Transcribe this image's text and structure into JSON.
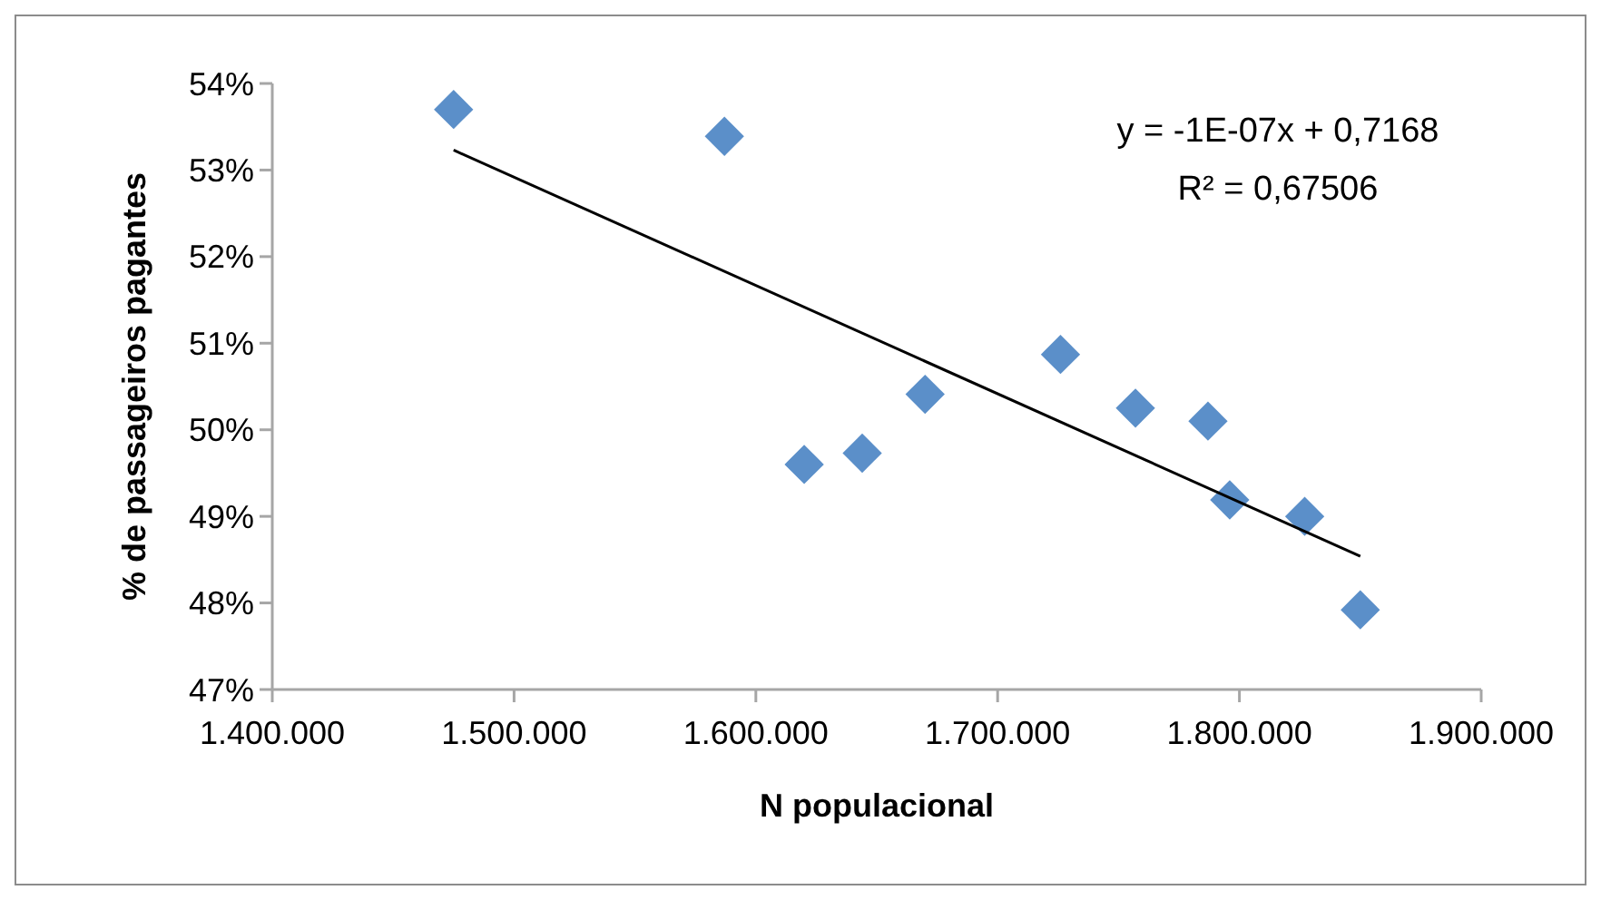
{
  "chart_data": {
    "type": "scatter",
    "xlabel": "N populacional",
    "ylabel": "% de passageiros pagantes",
    "xlim": [
      1400000,
      1900000
    ],
    "ylim": [
      47,
      54
    ],
    "xticks": [
      {
        "value": 1400000,
        "label": "1.400.000"
      },
      {
        "value": 1500000,
        "label": "1.500.000"
      },
      {
        "value": 1600000,
        "label": "1.600.000"
      },
      {
        "value": 1700000,
        "label": "1.700.000"
      },
      {
        "value": 1800000,
        "label": "1.800.000"
      },
      {
        "value": 1900000,
        "label": "1.900.000"
      }
    ],
    "yticks": [
      {
        "value": 47,
        "label": "47%"
      },
      {
        "value": 48,
        "label": "48%"
      },
      {
        "value": 49,
        "label": "49%"
      },
      {
        "value": 50,
        "label": "50%"
      },
      {
        "value": 51,
        "label": "51%"
      },
      {
        "value": 52,
        "label": "52%"
      },
      {
        "value": 53,
        "label": "53%"
      },
      {
        "value": 54,
        "label": "54%"
      }
    ],
    "grid": false,
    "series": [
      {
        "marker": "diamond",
        "color": "#5b8fc9",
        "x": [
          1475000,
          1587000,
          1620000,
          1644000,
          1670000,
          1726000,
          1757000,
          1787000,
          1796000,
          1827000,
          1850000
        ],
        "values": [
          53.7,
          53.39,
          49.6,
          49.73,
          50.41,
          50.87,
          50.25,
          50.1,
          49.19,
          49.0,
          47.92
        ]
      },
      {
        "type": "line",
        "color": "#000000",
        "x": [
          1475000,
          1850000
        ],
        "values": [
          53.23,
          48.54
        ]
      }
    ],
    "annotations": [
      "y = -1E-07x + 0,7168",
      "R² = 0,67506"
    ]
  }
}
